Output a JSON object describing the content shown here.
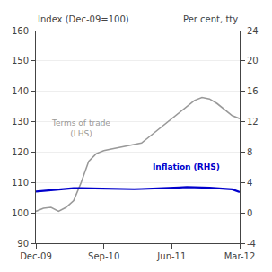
{
  "chart_data": {
    "type": "line",
    "ylabel": "Index (Dec-09=100)",
    "y2label": "Per cent, tty",
    "x": [
      0,
      1,
      2,
      3,
      4,
      5,
      6,
      7,
      8,
      9,
      10,
      11,
      12,
      13,
      14,
      15,
      16,
      17,
      18,
      19,
      20,
      21,
      22,
      23,
      24,
      25,
      26,
      27
    ],
    "xlim": [
      0,
      27
    ],
    "xticks": [
      {
        "value": 0,
        "label": "Dec-09"
      },
      {
        "value": 9,
        "label": "Sep-10"
      },
      {
        "value": 18,
        "label": "Jun-11"
      },
      {
        "value": 27,
        "label": "Mar-12"
      }
    ],
    "ylim": [
      90,
      160
    ],
    "yticks": [
      90,
      100,
      110,
      120,
      130,
      140,
      150,
      160
    ],
    "y2lim": [
      -4,
      24
    ],
    "y2ticks": [
      -4,
      0,
      4,
      8,
      12,
      16,
      20,
      24
    ],
    "grid": true,
    "series": [
      {
        "name": "Terms of trade\n(LHS)",
        "color": "#999999",
        "values": [
          100.5,
          101.5,
          101.8,
          100.5,
          101.8,
          104,
          110,
          117,
          119.5,
          120.5,
          121,
          121.5,
          122,
          122.5,
          123,
          125,
          127,
          129,
          131,
          133,
          135,
          137,
          138,
          137.5,
          136,
          134,
          132,
          131
        ]
      },
      {
        "name": "Inflation (RHS)",
        "color": "#0000cc",
        "axis": "y2",
        "values": [
          2.8,
          2.9,
          3.0,
          3.1,
          3.2,
          3.25,
          3.25,
          3.22,
          3.2,
          3.18,
          3.15,
          3.12,
          3.1,
          3.12,
          3.15,
          3.18,
          3.2,
          3.22,
          3.3,
          3.35,
          3.4,
          3.4,
          3.35,
          3.3,
          3.25,
          3.2,
          3.1,
          2.75
        ]
      }
    ]
  }
}
